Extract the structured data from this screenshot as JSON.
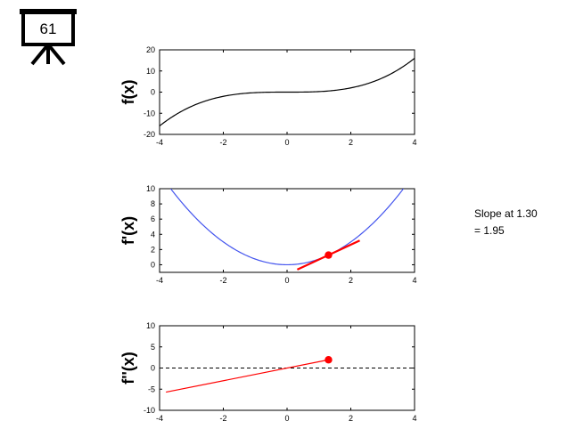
{
  "badge": {
    "number": "61",
    "icon": "presentation-screen-icon"
  },
  "slope_text": {
    "line1": "Slope at 1.30",
    "line2": "= 1.95"
  },
  "colors": {
    "f": "#000000",
    "fprime": "#4455ee",
    "fsecond": "#ff0000",
    "marker": "#ff0000",
    "tangent": "#ff0000",
    "zero_line": "#000000"
  },
  "chart_data": [
    {
      "type": "line",
      "ylabel": "f(x)",
      "xlim": [
        -4,
        4
      ],
      "ylim": [
        -20,
        20
      ],
      "xticks": [
        -4,
        -2,
        0,
        2,
        4
      ],
      "yticks": [
        -20,
        -10,
        0,
        10,
        20
      ],
      "series": [
        {
          "function": "x^3/4",
          "x": [
            -4,
            -3,
            -2,
            -1,
            0,
            1,
            2,
            3,
            4
          ],
          "values": [
            -16,
            -6.75,
            -2,
            -0.25,
            0,
            0.25,
            2,
            6.75,
            16
          ]
        }
      ]
    },
    {
      "type": "line",
      "ylabel": "f'(x)",
      "xlim": [
        -4,
        4
      ],
      "ylim": [
        -1,
        10
      ],
      "xticks": [
        -4,
        -2,
        0,
        2,
        4
      ],
      "yticks": [
        0,
        2,
        4,
        6,
        8,
        10
      ],
      "series": [
        {
          "function": "3x^2/4",
          "x": [
            -3.65,
            -3,
            -2,
            -1,
            0,
            1,
            2,
            3,
            3.65
          ],
          "values": [
            10,
            6.75,
            3,
            0.75,
            0,
            0.75,
            3,
            6.75,
            10
          ]
        }
      ],
      "point": {
        "x": 1.3,
        "y": 1.27
      },
      "tangent": {
        "x": [
          0.32,
          2.28
        ],
        "values": [
          -0.64,
          3.18
        ]
      }
    },
    {
      "type": "line",
      "ylabel": "f''(x)",
      "xlim": [
        -4,
        4
      ],
      "ylim": [
        -10,
        10
      ],
      "xticks": [
        -4,
        -2,
        0,
        2,
        4
      ],
      "yticks": [
        -10,
        -5,
        0,
        5,
        10
      ],
      "series": [
        {
          "function": "3x/2",
          "x": [
            -3.8,
            1.3
          ],
          "values": [
            -5.7,
            1.95
          ]
        }
      ],
      "zero_line": true,
      "point": {
        "x": 1.3,
        "y": 1.95
      }
    }
  ]
}
